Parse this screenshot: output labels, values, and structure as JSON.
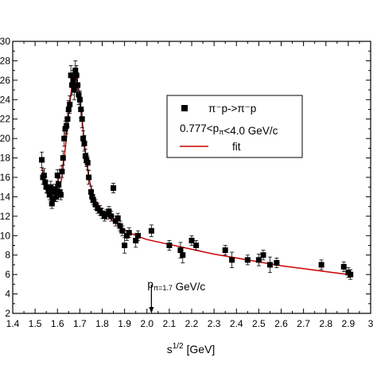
{
  "chart_data": {
    "type": "scatter",
    "xlabel": "s^{1/2} [GeV]",
    "ylabel": "",
    "xlim": [
      1.4,
      3.0
    ],
    "ylim": [
      2,
      30
    ],
    "xticks": [
      "1.4",
      "1.5",
      "1.6",
      "1.7",
      "1.8",
      "1.9",
      "2.0",
      "2.1",
      "2.2",
      "2.3",
      "2.4",
      "2.5",
      "2.6",
      "2.7",
      "2.8",
      "2.9",
      "3"
    ],
    "yticks": [
      "2",
      "4",
      "6",
      "8",
      "10",
      "12",
      "14",
      "16",
      "18",
      "20",
      "22",
      "24",
      "26",
      "28",
      "30"
    ],
    "grid": false,
    "legend_placement": "upper-right",
    "legend": {
      "data_label": "π⁻p->π⁻p",
      "range_label": "0.777<p_π<4.0 GeV/c",
      "fit_label": "fit"
    },
    "annotation": {
      "text": "p_π=1.7 GeV/c",
      "arrow_x": 2.02
    },
    "colors": {
      "data": "#000000",
      "fit": "#cc0000"
    },
    "series": [
      {
        "name": "π⁻p->π⁻p",
        "marker": "square",
        "points": [
          [
            1.53,
            17.8,
            0.8
          ],
          [
            1.535,
            16.0,
            0.7
          ],
          [
            1.54,
            16.2,
            0.7
          ],
          [
            1.545,
            15.5,
            0.6
          ],
          [
            1.55,
            15.0,
            0.6
          ],
          [
            1.56,
            14.6,
            0.6
          ],
          [
            1.565,
            14.2,
            0.5
          ],
          [
            1.57,
            15.0,
            0.6
          ],
          [
            1.575,
            13.3,
            0.5
          ],
          [
            1.58,
            13.8,
            0.5
          ],
          [
            1.585,
            14.5,
            0.5
          ],
          [
            1.59,
            14.8,
            0.5
          ],
          [
            1.595,
            14.0,
            0.5
          ],
          [
            1.6,
            16.2,
            0.6
          ],
          [
            1.605,
            15.3,
            0.6
          ],
          [
            1.61,
            14.5,
            0.5
          ],
          [
            1.615,
            14.2,
            0.5
          ],
          [
            1.62,
            16.6,
            0.6
          ],
          [
            1.625,
            18.0,
            0.7
          ],
          [
            1.63,
            20.0,
            0.8
          ],
          [
            1.635,
            21.0,
            0.8
          ],
          [
            1.64,
            21.3,
            0.8
          ],
          [
            1.645,
            22.0,
            0.8
          ],
          [
            1.65,
            23.0,
            0.9
          ],
          [
            1.655,
            23.5,
            0.9
          ],
          [
            1.66,
            26.5,
            1.0
          ],
          [
            1.665,
            25.5,
            1.0
          ],
          [
            1.67,
            26.0,
            1.0
          ],
          [
            1.675,
            25.0,
            1.0
          ],
          [
            1.68,
            27.0,
            1.0
          ],
          [
            1.685,
            26.5,
            1.0
          ],
          [
            1.69,
            25.5,
            1.0
          ],
          [
            1.695,
            24.5,
            1.0
          ],
          [
            1.7,
            24.0,
            0.9
          ],
          [
            1.705,
            23.0,
            0.9
          ],
          [
            1.71,
            22.0,
            0.9
          ],
          [
            1.715,
            20.0,
            0.8
          ],
          [
            1.72,
            19.5,
            0.8
          ],
          [
            1.725,
            18.2,
            0.7
          ],
          [
            1.73,
            17.8,
            0.7
          ],
          [
            1.735,
            17.5,
            0.7
          ],
          [
            1.74,
            16.0,
            0.7
          ],
          [
            1.75,
            14.5,
            0.6
          ],
          [
            1.755,
            14.0,
            0.6
          ],
          [
            1.76,
            13.7,
            0.5
          ],
          [
            1.77,
            13.2,
            0.5
          ],
          [
            1.78,
            12.8,
            0.5
          ],
          [
            1.79,
            12.6,
            0.5
          ],
          [
            1.8,
            12.3,
            0.5
          ],
          [
            1.81,
            12.0,
            0.5
          ],
          [
            1.82,
            12.2,
            0.5
          ],
          [
            1.83,
            12.5,
            0.5
          ],
          [
            1.84,
            12.0,
            0.5
          ],
          [
            1.85,
            14.9,
            0.5
          ],
          [
            1.86,
            11.5,
            0.5
          ],
          [
            1.87,
            11.8,
            0.5
          ],
          [
            1.88,
            11.0,
            0.5
          ],
          [
            1.89,
            10.5,
            0.5
          ],
          [
            1.9,
            9.0,
            0.8
          ],
          [
            1.91,
            10.0,
            0.5
          ],
          [
            1.92,
            10.3,
            0.5
          ],
          [
            1.95,
            9.5,
            0.7
          ],
          [
            1.96,
            10.0,
            0.5
          ],
          [
            2.02,
            10.5,
            0.6
          ],
          [
            2.1,
            9.0,
            0.5
          ],
          [
            2.15,
            8.5,
            0.8
          ],
          [
            2.16,
            8.0,
            0.8
          ],
          [
            2.2,
            9.5,
            0.5
          ],
          [
            2.22,
            9.0,
            0.5
          ],
          [
            2.35,
            8.5,
            0.5
          ],
          [
            2.38,
            7.5,
            0.8
          ],
          [
            2.45,
            7.5,
            0.5
          ],
          [
            2.5,
            7.5,
            0.6
          ],
          [
            2.52,
            8.0,
            0.5
          ],
          [
            2.55,
            7.0,
            0.8
          ],
          [
            2.58,
            7.2,
            0.5
          ],
          [
            2.78,
            7.0,
            0.5
          ],
          [
            2.88,
            6.8,
            0.5
          ],
          [
            2.9,
            6.2,
            0.5
          ],
          [
            2.91,
            6.0,
            0.5
          ]
        ]
      }
    ],
    "fit": {
      "name": "fit",
      "x": [
        1.53,
        1.545,
        1.56,
        1.575,
        1.59,
        1.605,
        1.62,
        1.635,
        1.65,
        1.665,
        1.68,
        1.695,
        1.71,
        1.725,
        1.74,
        1.76,
        1.8,
        1.85,
        1.9,
        1.95,
        2.0,
        2.1,
        2.2,
        2.3,
        2.4,
        2.5,
        2.6,
        2.7,
        2.8,
        2.9
      ],
      "y": [
        17.0,
        15.5,
        14.5,
        14.0,
        14.0,
        14.5,
        16.0,
        19.0,
        22.5,
        25.5,
        26.8,
        25.0,
        22.0,
        18.5,
        16.0,
        14.0,
        12.5,
        11.5,
        10.6,
        10.0,
        9.6,
        9.1,
        8.6,
        8.1,
        7.7,
        7.3,
        6.9,
        6.6,
        6.3,
        6.0
      ]
    }
  }
}
